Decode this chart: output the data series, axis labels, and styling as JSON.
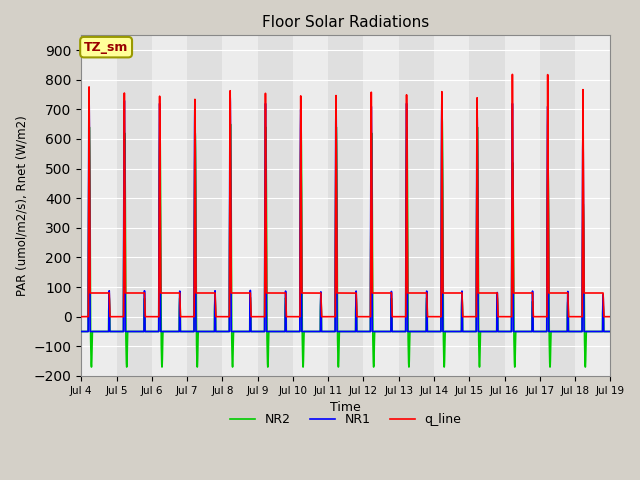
{
  "title": "Floor Solar Radiations",
  "xlabel": "Time",
  "ylabel": "PAR (umol/m2/s), Rnet (W/m2)",
  "ylim": [
    -200,
    950
  ],
  "yticks": [
    -200,
    -100,
    0,
    100,
    200,
    300,
    400,
    500,
    600,
    700,
    800,
    900
  ],
  "start_day": 4,
  "end_day": 19,
  "num_days": 15,
  "background_color": "#d4d0c8",
  "plot_bg_color": "#e8e8e8",
  "annotation_text": "TZ_sm",
  "line_colors": {
    "q_line": "#ff0000",
    "NR1": "#0000ff",
    "NR2": "#00cc00"
  },
  "q_line_daytime_value": 80,
  "NR1_night_value": -50,
  "NR2_night_value": -50,
  "peak_heights_q": [
    780,
    760,
    750,
    740,
    770,
    760,
    750,
    750,
    760,
    750,
    760,
    740,
    820,
    820,
    770
  ],
  "peak_heights_NR1": [
    730,
    730,
    720,
    730,
    740,
    720,
    700,
    720,
    710,
    720,
    720,
    680,
    720,
    710,
    620
  ],
  "peak_heights_NR2": [
    640,
    620,
    630,
    620,
    650,
    640,
    640,
    640,
    620,
    640,
    670,
    640,
    520,
    510,
    380
  ]
}
